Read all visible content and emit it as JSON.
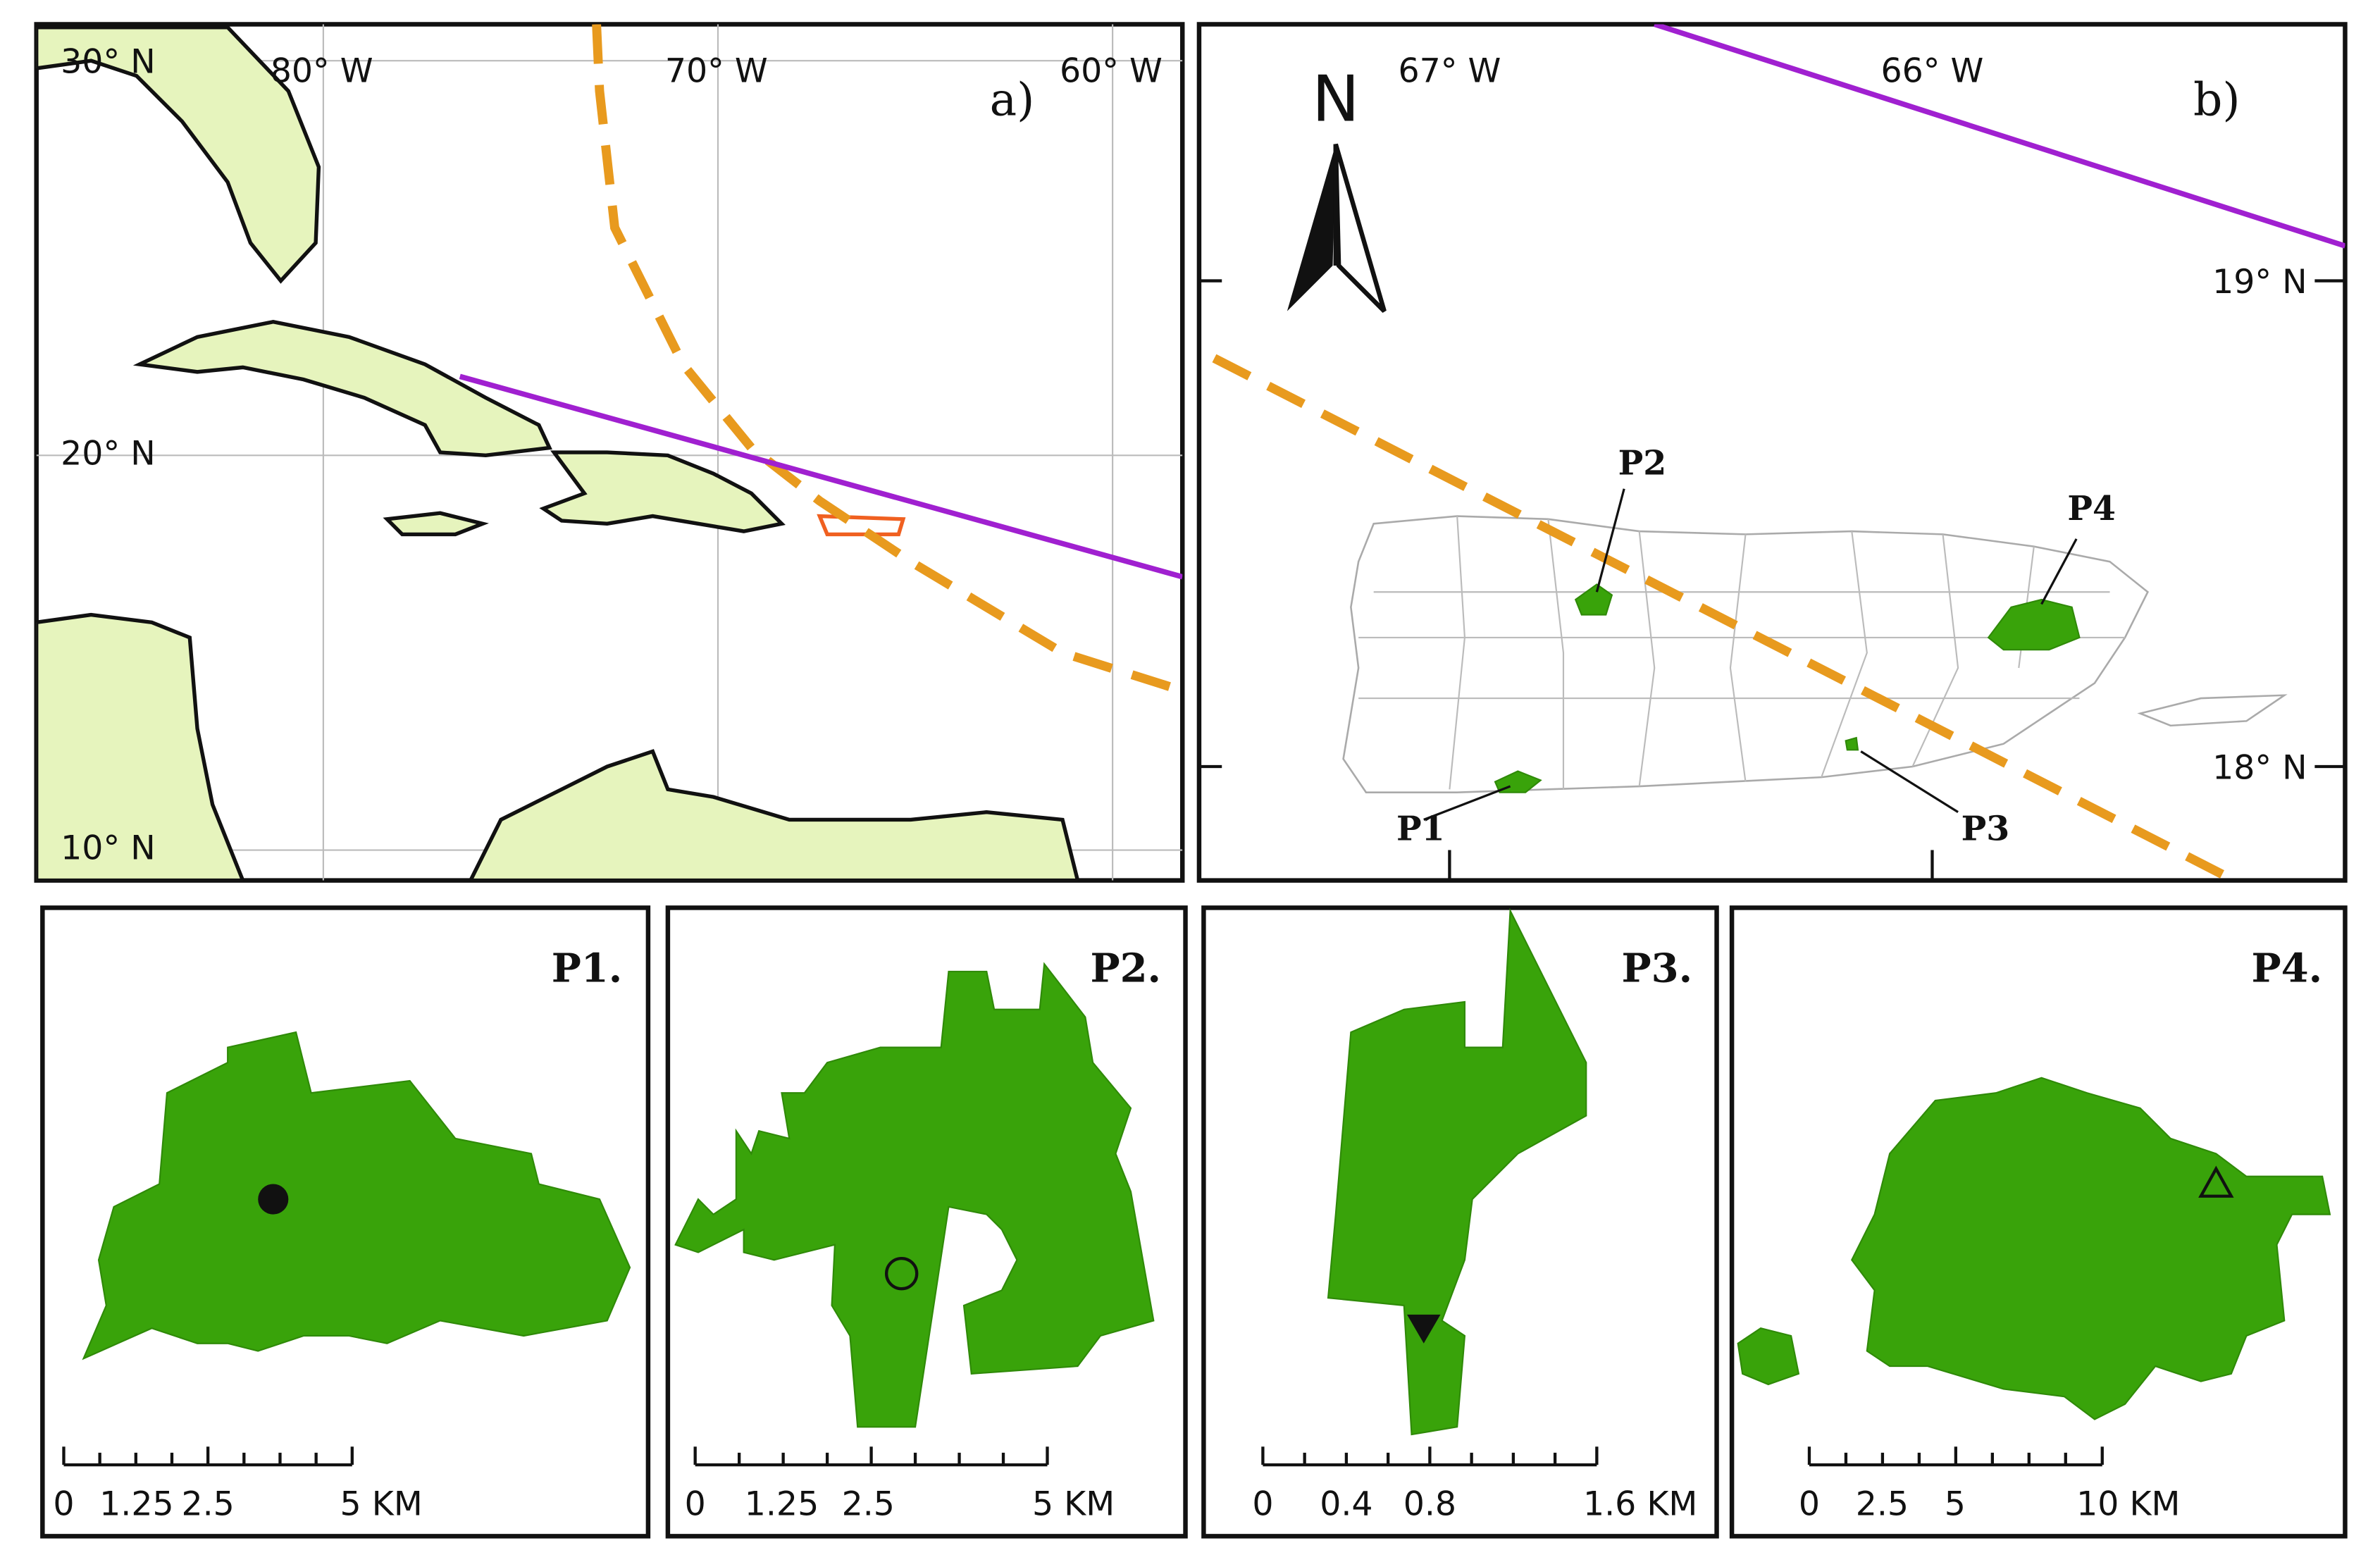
{
  "panel_a": {
    "label": "a)",
    "lon_labels": [
      "80° W",
      "70° W",
      "60° W"
    ],
    "lat_labels": [
      "30° N",
      "20° N",
      "10° N"
    ]
  },
  "panel_b": {
    "label": "b)",
    "north": "N",
    "lon_labels": [
      "67° W",
      "66° W"
    ],
    "lat_labels": [
      "19° N",
      "18° N"
    ],
    "sites": [
      "P1",
      "P2",
      "P3",
      "P4"
    ]
  },
  "insets": [
    {
      "label": "P1.",
      "scale": [
        "0",
        "1.25",
        "2.5",
        "5 KM"
      ]
    },
    {
      "label": "P2.",
      "scale": [
        "0",
        "1.25",
        "2.5",
        "5 KM"
      ]
    },
    {
      "label": "P3.",
      "scale": [
        "0",
        "0.4",
        "0.8",
        "1.6 KM"
      ]
    },
    {
      "label": "P4.",
      "scale": [
        "0",
        "2.5",
        "5",
        "10 KM"
      ]
    }
  ]
}
